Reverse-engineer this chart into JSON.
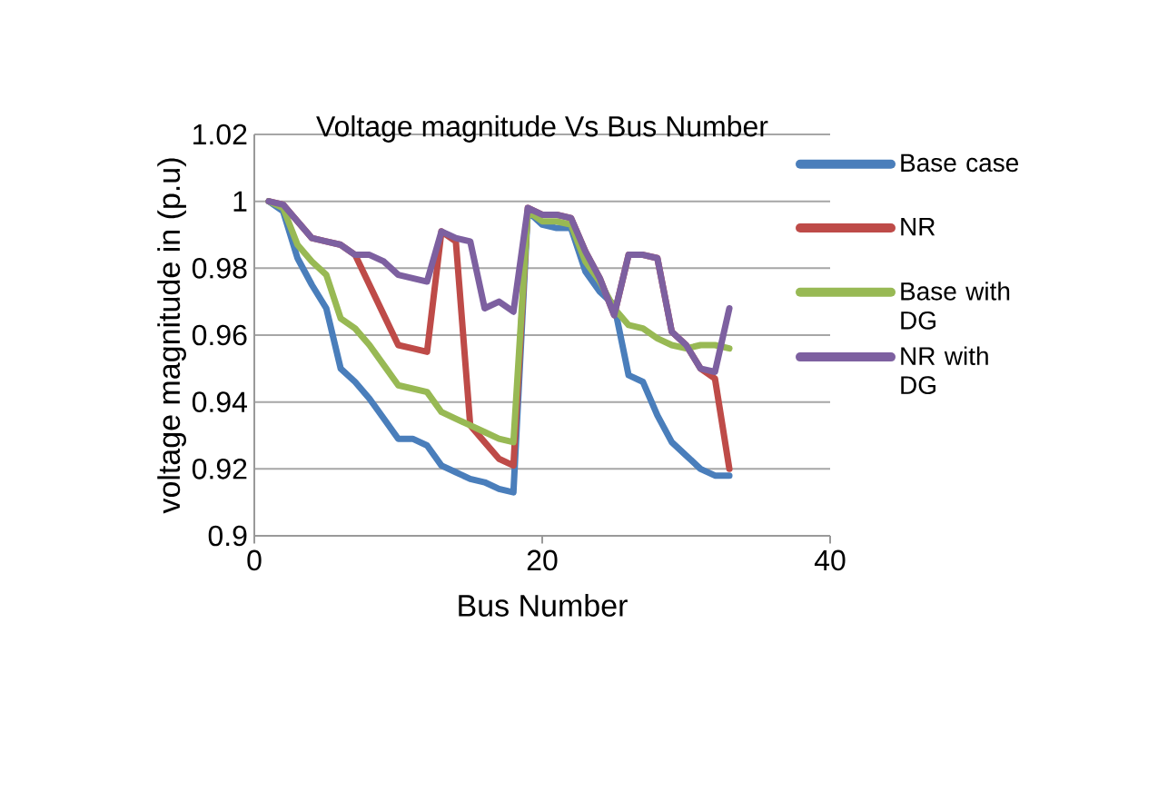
{
  "chart_data": {
    "type": "line",
    "title": "Voltage magnitude Vs Bus Number",
    "xlabel": "Bus Number",
    "ylabel": "voltage magnitude in (p.u)",
    "x": [
      1,
      2,
      3,
      4,
      5,
      6,
      7,
      8,
      9,
      10,
      11,
      12,
      13,
      14,
      15,
      16,
      17,
      18,
      19,
      20,
      21,
      22,
      23,
      24,
      25,
      26,
      27,
      28,
      29,
      30,
      31,
      32,
      33
    ],
    "series": [
      {
        "name": "Base case",
        "color": "#4a7ebb",
        "values": [
          1.0,
          0.997,
          0.983,
          0.975,
          0.968,
          0.95,
          0.946,
          0.941,
          0.935,
          0.929,
          0.929,
          0.927,
          0.921,
          0.919,
          0.917,
          0.916,
          0.914,
          0.913,
          0.997,
          0.993,
          0.992,
          0.992,
          0.979,
          0.973,
          0.969,
          0.948,
          0.946,
          0.936,
          0.928,
          0.924,
          0.92,
          0.918,
          0.918
        ]
      },
      {
        "name": "NR",
        "color": "#be4b48",
        "values": [
          1.0,
          0.999,
          0.994,
          0.989,
          0.988,
          0.987,
          0.984,
          0.975,
          0.966,
          0.957,
          0.956,
          0.955,
          0.991,
          0.988,
          0.933,
          0.928,
          0.923,
          0.921,
          0.998,
          0.996,
          0.996,
          0.995,
          0.985,
          0.977,
          0.966,
          0.984,
          0.984,
          0.983,
          0.961,
          0.957,
          0.95,
          0.947,
          0.92
        ]
      },
      {
        "name": "Base with DG",
        "color": "#98b954",
        "values": [
          1.0,
          0.998,
          0.987,
          0.982,
          0.978,
          0.965,
          0.962,
          0.957,
          0.951,
          0.945,
          0.944,
          0.943,
          0.937,
          0.935,
          0.933,
          0.931,
          0.929,
          0.928,
          0.997,
          0.994,
          0.994,
          0.993,
          0.982,
          0.976,
          0.968,
          0.963,
          0.962,
          0.959,
          0.957,
          0.956,
          0.957,
          0.957,
          0.956
        ]
      },
      {
        "name": "NR with DG",
        "color": "#7d60a0",
        "values": [
          1.0,
          0.999,
          0.994,
          0.989,
          0.988,
          0.987,
          0.984,
          0.984,
          0.982,
          0.978,
          0.977,
          0.976,
          0.991,
          0.989,
          0.988,
          0.968,
          0.97,
          0.967,
          0.998,
          0.996,
          0.996,
          0.995,
          0.985,
          0.977,
          0.966,
          0.984,
          0.984,
          0.983,
          0.961,
          0.957,
          0.95,
          0.949,
          0.968
        ]
      }
    ],
    "xlim": [
      0,
      40
    ],
    "xticks": [
      0,
      20,
      40
    ],
    "ylim": [
      0.9,
      1.02
    ],
    "yticks": [
      0.9,
      0.92,
      0.94,
      0.96,
      0.98,
      {
        "value": 1.0,
        "label": "1"
      },
      1.02
    ],
    "grid": "y",
    "legend": "right",
    "marker": "none",
    "line_style": "solid"
  }
}
